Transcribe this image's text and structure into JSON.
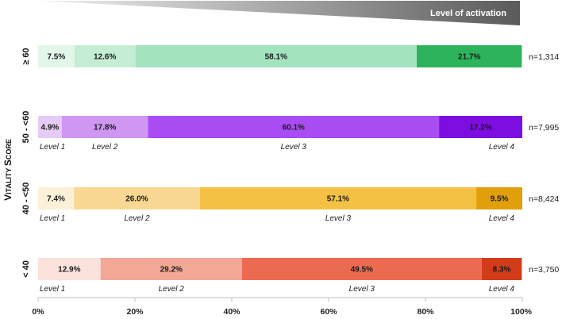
{
  "chart_data": {
    "type": "bar",
    "orientation": "horizontal",
    "stacked": true,
    "activation_label": "Level of activation",
    "ylabel": "Vitality score",
    "xlim": [
      0,
      100
    ],
    "x_ticks": [
      "0%",
      "20%",
      "40%",
      "60%",
      "80%",
      "100%"
    ],
    "rows": [
      {
        "category": "≥ 60",
        "n": "n=1,314",
        "values": [
          7.5,
          12.6,
          58.1,
          21.7
        ],
        "labels": [
          "7.5%",
          "12.6%",
          "58.1%",
          "21.7%"
        ],
        "colors": [
          "#e3f6ea",
          "#c4edd4",
          "#a3e4bf",
          "#2db35c"
        ],
        "levels": []
      },
      {
        "category": "50 - <60",
        "n": "n=7,995",
        "values": [
          4.9,
          17.8,
          60.1,
          17.2
        ],
        "labels": [
          "4.9%",
          "17.8%",
          "60.1%",
          "17.2%"
        ],
        "colors": [
          "#e6cbf8",
          "#cf96f2",
          "#aa4cf4",
          "#7d0de0"
        ],
        "levels": [
          "Level 1",
          "Level 2",
          "Level 3",
          "Level 4"
        ]
      },
      {
        "category": "40 - <50",
        "n": "n=8,424",
        "values": [
          7.4,
          26.0,
          57.1,
          9.5
        ],
        "labels": [
          "7.4%",
          "26.0%",
          "57.1%",
          "9.5%"
        ],
        "colors": [
          "#fcf1d8",
          "#f8d892",
          "#f4c145",
          "#e19f0c"
        ],
        "levels": [
          "Level 1",
          "Level 2",
          "Level 3",
          "Level 4"
        ]
      },
      {
        "category": "< 40",
        "n": "n=3,750",
        "values": [
          12.9,
          29.2,
          49.5,
          8.3
        ],
        "labels": [
          "12.9%",
          "29.2%",
          "49.5%",
          "8.3%"
        ],
        "colors": [
          "#fbe2dc",
          "#f3a796",
          "#ec6b50",
          "#d23c19"
        ],
        "levels": [
          "Level 1",
          "Level 2",
          "Level 3",
          "Level 4"
        ]
      }
    ]
  }
}
